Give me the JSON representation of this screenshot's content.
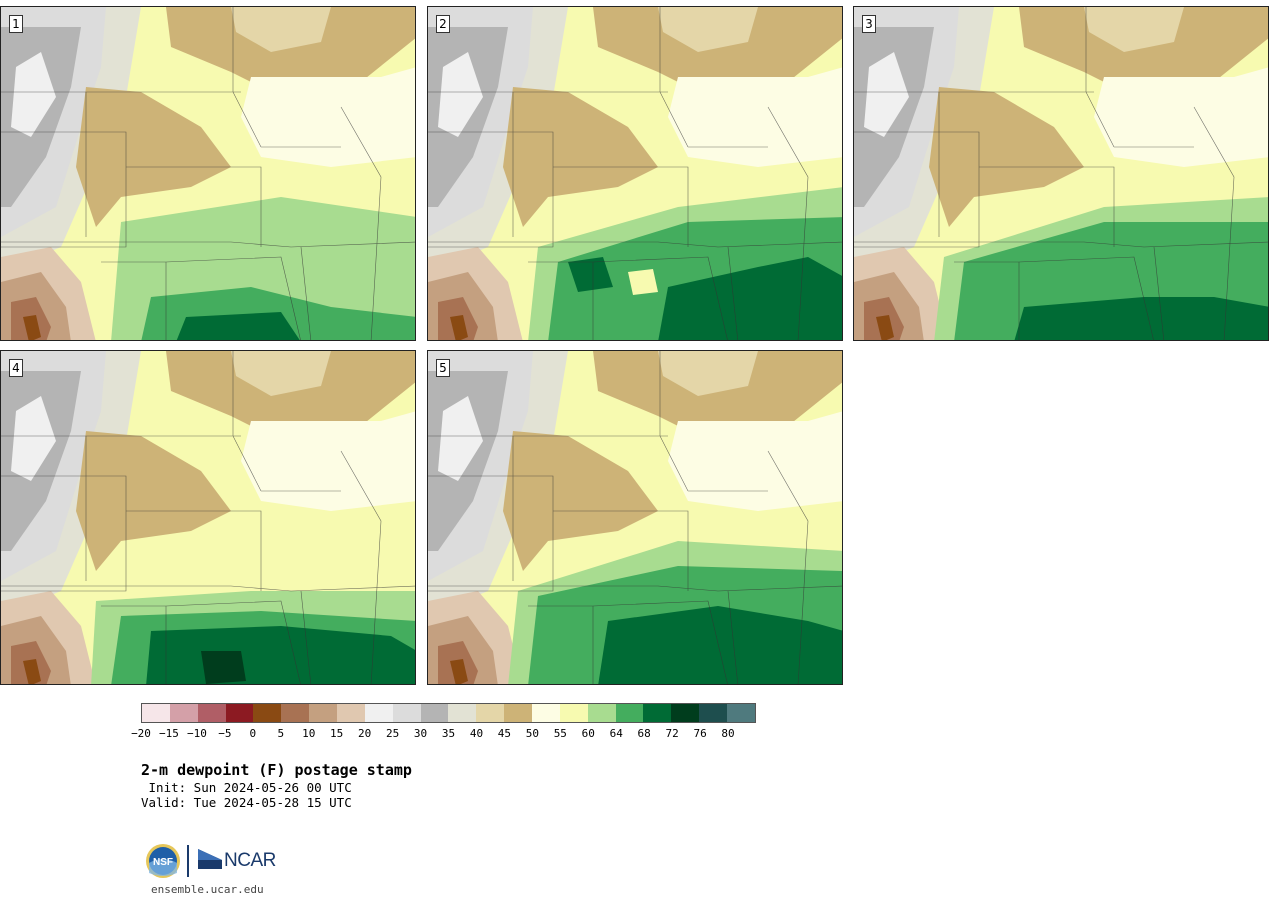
{
  "panels": [
    {
      "label": "1"
    },
    {
      "label": "2"
    },
    {
      "label": "3"
    },
    {
      "label": "4"
    },
    {
      "label": "5"
    }
  ],
  "colorbar": {
    "colors": [
      "#f6e6e9",
      "#d4a0a8",
      "#b05e66",
      "#8c1a22",
      "#8a4a13",
      "#a87253",
      "#c4a080",
      "#e0c8b0",
      "#f0f0f0",
      "#dcdcdc",
      "#b4b4b4",
      "#e2e2d4",
      "#e4d6a8",
      "#cdb377",
      "#fdfde4",
      "#f7fab0",
      "#a8dc90",
      "#44ad5e",
      "#006b35",
      "#003d1d",
      "#1e4e4e",
      "#4f7a7e"
    ],
    "ticks": [
      "−20",
      "−15",
      "−10",
      "−5",
      "0",
      "5",
      "10",
      "15",
      "20",
      "25",
      "30",
      "35",
      "40",
      "45",
      "50",
      "55",
      "60",
      "64",
      "68",
      "72",
      "76",
      "80"
    ]
  },
  "title": "2-m dewpoint (F) postage stamp",
  "init": " Init: Sun 2024-05-26 00 UTC",
  "valid": "Valid: Tue 2024-05-28 15 UTC",
  "logos": {
    "nsf": "NSF",
    "ncar": "NCAR"
  },
  "site": "ensemble.ucar.edu"
}
